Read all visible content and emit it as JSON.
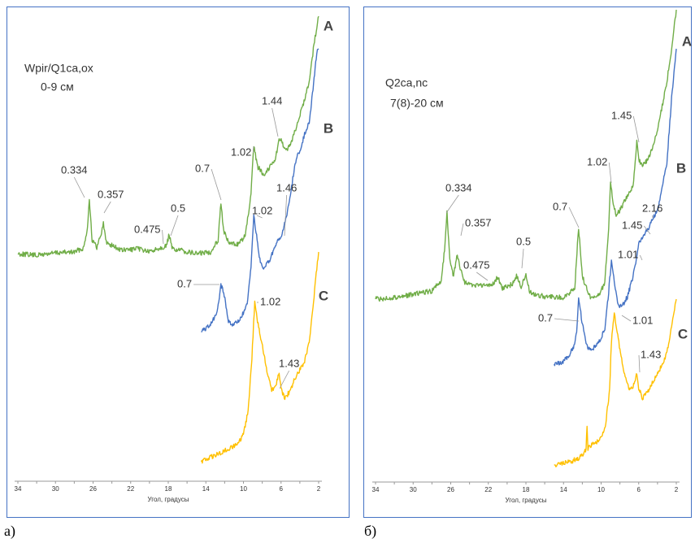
{
  "panels": [
    {
      "caption": "а)",
      "sample": [
        "Wpir/Q1ca,ox",
        "0-9 см"
      ],
      "x_axis": {
        "title": "Угол, градусы",
        "ticks": [
          "34",
          "",
          "30",
          "",
          "26",
          "",
          "22",
          "",
          "18",
          "",
          "14",
          "",
          "10",
          "",
          "6",
          "",
          "2"
        ]
      },
      "curve_labels": [
        "A",
        "B",
        "C"
      ],
      "peak_labels": [
        "0.334",
        "0.357",
        "0.475",
        "0.5",
        "0.7",
        "1.02",
        "1.44",
        "1.46",
        "1.02",
        "0.7",
        "1.02",
        "1.43"
      ]
    },
    {
      "caption": "б)",
      "sample": [
        "Q2ca,nc",
        "7(8)-20 см"
      ],
      "x_axis": {
        "title": "Угол, градусы",
        "ticks": [
          "34",
          "",
          "30",
          "",
          "26",
          "",
          "22",
          "",
          "18",
          "",
          "14",
          "",
          "10",
          "",
          "6",
          "",
          "2"
        ]
      },
      "curve_labels": [
        "A",
        "B",
        "C"
      ],
      "peak_labels": [
        "0.334",
        "0.357",
        "0.475",
        "0.5",
        "0.7",
        "1.02",
        "1.45",
        "2.16",
        "1.45",
        "1.01",
        "0.7",
        "1.01",
        "1.43"
      ]
    }
  ]
}
